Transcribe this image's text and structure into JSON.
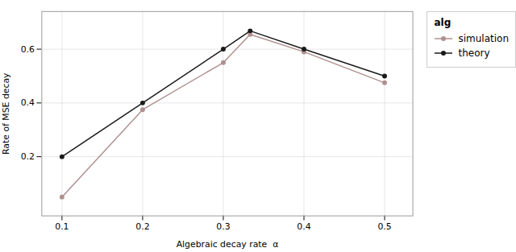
{
  "chart_data": {
    "type": "line",
    "x": [
      0.1,
      0.2,
      0.3,
      0.3333,
      0.4,
      0.5
    ],
    "series": [
      {
        "name": "simulation",
        "color": "#b09090",
        "marker": "circle",
        "values": [
          0.05,
          0.375,
          0.55,
          0.655,
          0.59,
          0.475
        ]
      },
      {
        "name": "theory",
        "color": "#1a1a1a",
        "marker": "circle",
        "values": [
          0.2,
          0.4,
          0.6,
          0.668,
          0.6,
          0.5
        ]
      }
    ],
    "xlabel": "Algebraic decay rate  α",
    "ylabel": "Rate of MSE decay",
    "legend_title": "alg",
    "legend": "right",
    "xlim": [
      0.075,
      0.535
    ],
    "ylim": [
      -0.02,
      0.74
    ],
    "xticks": [
      0.1,
      0.2,
      0.3,
      0.4,
      0.5
    ],
    "yticks": [
      0.2,
      0.4,
      0.6
    ],
    "grid": true
  }
}
